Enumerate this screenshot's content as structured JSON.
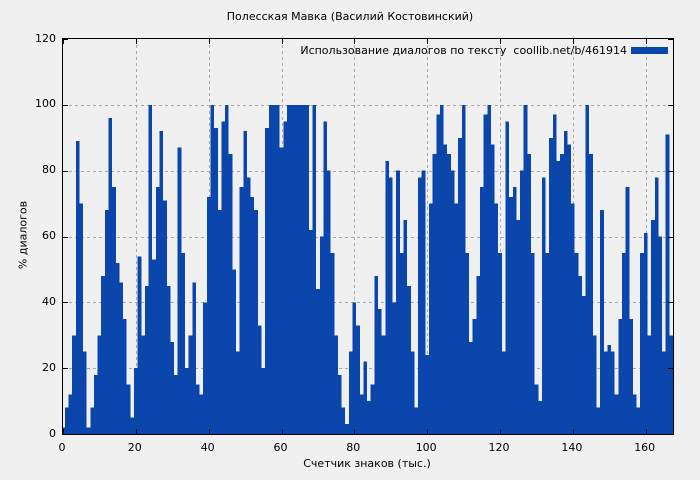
{
  "title": "Полесская Мавка (Василий Костовинский)",
  "legend": {
    "label": "Использование диалогов по тексту  coollib.net/b/461914",
    "swatch_color": "#0b46ad"
  },
  "axes": {
    "x": {
      "label": "Счетчик знаков (тыс.)",
      "ticks": [
        0,
        20,
        40,
        60,
        80,
        100,
        120,
        140,
        160
      ]
    },
    "y": {
      "label": "% диалогов",
      "ticks": [
        0,
        20,
        40,
        60,
        80,
        100,
        120
      ]
    }
  },
  "colors": {
    "bar": "#0b46ad",
    "background": "#f0f0f0",
    "grid": "#a9a9a9",
    "axis": "#000000"
  },
  "chart_data": {
    "type": "bar",
    "title": "Полесская Мавка (Василий Костовинский)",
    "xlabel": "Счетчик знаков (тыс.)",
    "ylabel": "% диалогов",
    "legend": "Использование диалогов по тексту  coollib.net/b/461914",
    "legend_position": "top-right",
    "grid": true,
    "xlim": [
      0,
      167.5
    ],
    "ylim": [
      0,
      120
    ],
    "x_start": 0,
    "x_step": 1,
    "values": [
      2,
      8,
      12,
      30,
      89,
      70,
      25,
      2,
      8,
      18,
      30,
      48,
      68,
      96,
      75,
      52,
      46,
      35,
      15,
      5,
      20,
      54,
      30,
      45,
      100,
      53,
      75,
      92,
      71,
      45,
      28,
      18,
      87,
      55,
      20,
      30,
      46,
      15,
      12,
      40,
      72,
      100,
      93,
      68,
      95,
      100,
      85,
      50,
      25,
      75,
      92,
      78,
      72,
      68,
      33,
      20,
      93,
      100,
      100,
      100,
      87,
      95,
      100,
      100,
      100,
      100,
      100,
      100,
      62,
      100,
      44,
      60,
      95,
      80,
      55,
      30,
      18,
      8,
      3,
      25,
      40,
      33,
      12,
      22,
      10,
      15,
      48,
      38,
      30,
      83,
      78,
      40,
      80,
      55,
      65,
      45,
      25,
      8,
      78,
      80,
      24,
      70,
      85,
      97,
      100,
      88,
      85,
      80,
      70,
      90,
      100,
      55,
      28,
      35,
      48,
      75,
      97,
      100,
      88,
      70,
      55,
      25,
      95,
      72,
      75,
      65,
      80,
      100,
      85,
      55,
      15,
      10,
      78,
      55,
      90,
      97,
      83,
      85,
      92,
      88,
      70,
      55,
      48,
      42,
      100,
      85,
      30,
      8,
      68,
      25,
      27,
      25,
      12,
      35,
      55,
      75,
      35,
      12,
      8,
      55,
      61,
      30,
      65,
      78,
      60,
      25,
      91,
      30
    ]
  }
}
